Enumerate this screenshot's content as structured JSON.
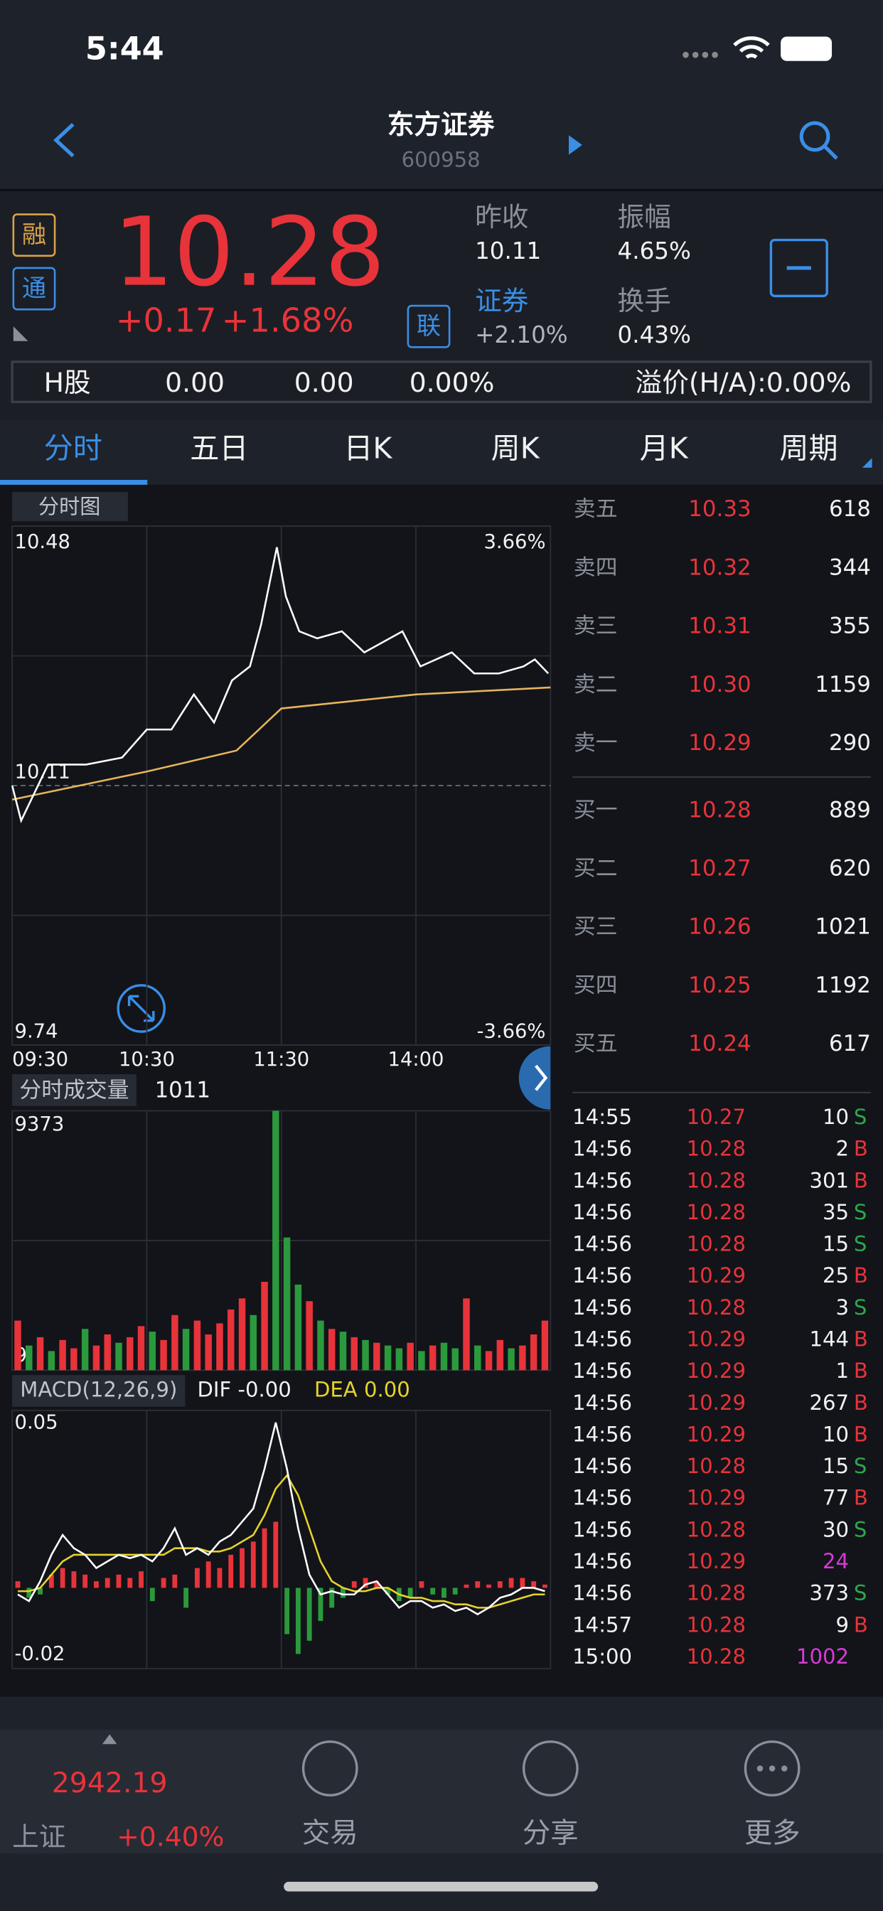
{
  "status": {
    "time": "5:44"
  },
  "header": {
    "title": "东方证券",
    "code": "600958"
  },
  "quote": {
    "price": "10.28",
    "change": "+0.17",
    "percent": "+1.68%",
    "badges": [
      "融",
      "通",
      "联"
    ],
    "stats": [
      {
        "label": "昨收",
        "value": "10.11"
      },
      {
        "label": "振幅",
        "value": "4.65%"
      },
      {
        "label": "证券",
        "value": "+2.10%"
      },
      {
        "label": "换手",
        "value": "0.43%"
      }
    ]
  },
  "hshare": [
    "H股",
    "0.00",
    "0.00",
    "0.00%",
    "溢价(H/A):0.00%"
  ],
  "tabs": [
    "分时",
    "五日",
    "日K",
    "周K",
    "月K",
    "周期"
  ],
  "intraday": {
    "label": "分时图",
    "ylim": [
      9.74,
      10.48
    ],
    "yticks": [
      10.48,
      10.11,
      9.74
    ],
    "pct_labels": [
      "3.66%",
      "-3.66%"
    ],
    "time_labels": [
      "09:30",
      "10:30",
      "11:30",
      "14:00"
    ],
    "xlim": [
      0,
      240
    ],
    "price_x": [
      0,
      4,
      16,
      33,
      49,
      60,
      71,
      81,
      90,
      98,
      106,
      111,
      118,
      122,
      128,
      136,
      147,
      157,
      174,
      182,
      196,
      206,
      217,
      228,
      233,
      239
    ],
    "price": [
      10.11,
      10.06,
      10.14,
      10.14,
      10.15,
      10.19,
      10.19,
      10.24,
      10.2,
      10.26,
      10.28,
      10.34,
      10.45,
      10.38,
      10.33,
      10.32,
      10.33,
      10.3,
      10.33,
      10.28,
      10.3,
      10.27,
      10.27,
      10.28,
      10.29,
      10.27
    ],
    "avg_x": [
      0,
      30,
      60,
      100,
      110,
      120,
      150,
      180,
      240
    ],
    "avg": [
      10.09,
      10.11,
      10.13,
      10.16,
      10.19,
      10.22,
      10.23,
      10.24,
      10.25
    ]
  },
  "volume": {
    "label": "分时成交量",
    "current": "1011",
    "ylim": [
      9,
      9373
    ],
    "yticks": [
      9373,
      9
    ],
    "values": [
      1800,
      900,
      1200,
      700,
      1100,
      800,
      1500,
      900,
      1300,
      1000,
      1200,
      1600,
      1400,
      1100,
      2000,
      1500,
      1800,
      1300,
      1700,
      2200,
      2600,
      2000,
      3200,
      9373,
      4800,
      3100,
      2500,
      1800,
      1500,
      1400,
      1200,
      1100,
      1000,
      900,
      800,
      1000,
      700,
      900,
      1000,
      800,
      2600,
      900,
      700,
      1100,
      800,
      900,
      1300,
      1800
    ],
    "up": [
      true,
      false,
      true,
      false,
      true,
      true,
      false,
      true,
      true,
      false,
      true,
      true,
      false,
      true,
      true,
      false,
      true,
      true,
      true,
      true,
      true,
      false,
      true,
      false,
      false,
      false,
      true,
      false,
      true,
      false,
      true,
      false,
      true,
      false,
      false,
      true,
      false,
      true,
      false,
      false,
      true,
      false,
      true,
      true,
      false,
      true,
      true,
      true
    ],
    "up_color": "#e8333a",
    "down_color": "#2a9a3c"
  },
  "macd": {
    "label": "MACD(12,26,9)",
    "dif_label": "DIF -0.00",
    "dea_label": "DEA 0.00",
    "ylim": [
      -0.02,
      0.05
    ],
    "yticks": [
      0.05,
      -0.02
    ],
    "yticks_labels": [
      "0.05",
      "-0.02"
    ],
    "hist": [
      0.002,
      -0.003,
      -0.002,
      0.004,
      0.006,
      0.005,
      0.004,
      0.002,
      0.003,
      0.004,
      0.003,
      0.005,
      -0.004,
      0.003,
      0.004,
      -0.006,
      0.006,
      0.008,
      0.006,
      0.01,
      0.012,
      0.014,
      0.018,
      0.02,
      -0.014,
      -0.02,
      -0.016,
      -0.01,
      -0.006,
      -0.003,
      0.002,
      0.003,
      0.002,
      -0.002,
      -0.004,
      -0.003,
      0.002,
      -0.002,
      -0.003,
      -0.002,
      0.001,
      0.002,
      0.001,
      0.002,
      0.003,
      0.003,
      0.002,
      0.001
    ],
    "dif": [
      -0.002,
      -0.004,
      0.002,
      0.01,
      0.016,
      0.012,
      0.01,
      0.006,
      0.008,
      0.01,
      0.009,
      0.01,
      0.008,
      0.012,
      0.018,
      0.01,
      0.012,
      0.01,
      0.014,
      0.016,
      0.02,
      0.024,
      0.036,
      0.05,
      0.036,
      0.018,
      0.004,
      -0.002,
      -0.001,
      -0.002,
      -0.002,
      0.001,
      0.002,
      -0.002,
      -0.006,
      -0.004,
      -0.004,
      -0.006,
      -0.005,
      -0.007,
      -0.006,
      -0.008,
      -0.006,
      -0.003,
      -0.002,
      0,
      0,
      -0.001
    ],
    "dea": [
      -0.001,
      -0.001,
      0,
      0.004,
      0.008,
      0.01,
      0.01,
      0.01,
      0.01,
      0.01,
      0.01,
      0.01,
      0.01,
      0.01,
      0.012,
      0.012,
      0.012,
      0.011,
      0.011,
      0.012,
      0.014,
      0.016,
      0.022,
      0.03,
      0.034,
      0.028,
      0.018,
      0.008,
      0.002,
      0,
      -0.001,
      -0.001,
      0,
      0,
      -0.002,
      -0.003,
      -0.003,
      -0.004,
      -0.004,
      -0.005,
      -0.005,
      -0.006,
      -0.006,
      -0.005,
      -0.004,
      -0.003,
      -0.002,
      -0.002
    ]
  },
  "orderbook": {
    "asks": [
      {
        "label": "卖五",
        "price": "10.33",
        "volume": "618"
      },
      {
        "label": "卖四",
        "price": "10.32",
        "volume": "344"
      },
      {
        "label": "卖三",
        "price": "10.31",
        "volume": "355"
      },
      {
        "label": "卖二",
        "price": "10.30",
        "volume": "1159"
      },
      {
        "label": "卖一",
        "price": "10.29",
        "volume": "290"
      }
    ],
    "bids": [
      {
        "label": "买一",
        "price": "10.28",
        "volume": "889"
      },
      {
        "label": "买二",
        "price": "10.27",
        "volume": "620"
      },
      {
        "label": "买三",
        "price": "10.26",
        "volume": "1021"
      },
      {
        "label": "买四",
        "price": "10.25",
        "volume": "1192"
      },
      {
        "label": "买五",
        "price": "10.24",
        "volume": "617"
      }
    ]
  },
  "trades": [
    {
      "time": "14:55",
      "price": "10.27",
      "volume": "10",
      "side": "S"
    },
    {
      "time": "14:56",
      "price": "10.28",
      "volume": "2",
      "side": "B"
    },
    {
      "time": "14:56",
      "price": "10.28",
      "volume": "301",
      "side": "B"
    },
    {
      "time": "14:56",
      "price": "10.28",
      "volume": "35",
      "side": "S"
    },
    {
      "time": "14:56",
      "price": "10.28",
      "volume": "15",
      "side": "S"
    },
    {
      "time": "14:56",
      "price": "10.29",
      "volume": "25",
      "side": "B"
    },
    {
      "time": "14:56",
      "price": "10.28",
      "volume": "3",
      "side": "S"
    },
    {
      "time": "14:56",
      "price": "10.29",
      "volume": "144",
      "side": "B"
    },
    {
      "time": "14:56",
      "price": "10.29",
      "volume": "1",
      "side": "B"
    },
    {
      "time": "14:56",
      "price": "10.29",
      "volume": "267",
      "side": "B"
    },
    {
      "time": "14:56",
      "price": "10.29",
      "volume": "10",
      "side": "B"
    },
    {
      "time": "14:56",
      "price": "10.28",
      "volume": "15",
      "side": "S"
    },
    {
      "time": "14:56",
      "price": "10.29",
      "volume": "77",
      "side": "B"
    },
    {
      "time": "14:56",
      "price": "10.28",
      "volume": "30",
      "side": "S"
    },
    {
      "time": "14:56",
      "price": "10.29",
      "volume": "24"
    },
    {
      "time": "14:56",
      "price": "10.28",
      "volume": "373",
      "side": "S"
    },
    {
      "time": "14:57",
      "price": "10.28",
      "volume": "9",
      "side": "B"
    },
    {
      "time": "15:00",
      "price": "10.28",
      "volume": "1002"
    }
  ],
  "footer": {
    "index_value": "2942.19",
    "index_name": "上证",
    "index_change": "+0.40%",
    "nav": [
      "交易",
      "分享",
      "更多"
    ]
  }
}
